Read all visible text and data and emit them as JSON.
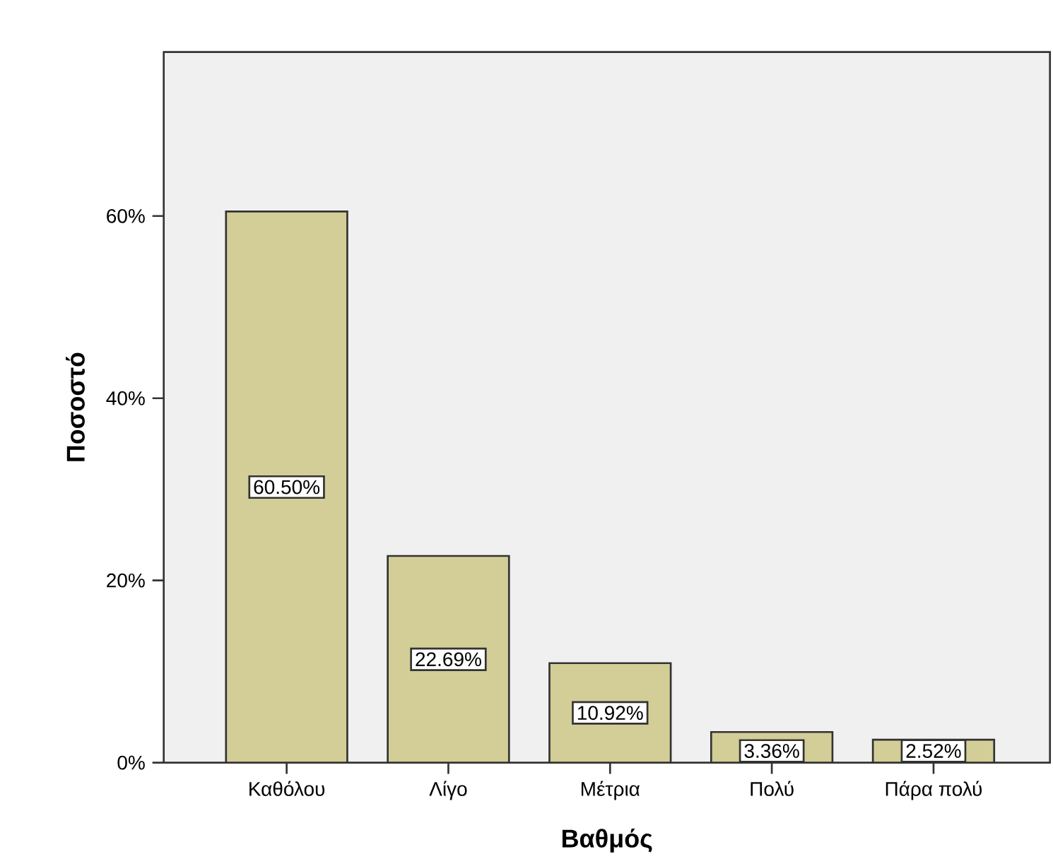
{
  "chart_data": {
    "type": "bar",
    "xlabel": "Βαθμός",
    "ylabel": "Ποσοστό",
    "categories": [
      "Καθόλου",
      "Λίγο",
      "Μέτρια",
      "Πολύ",
      "Πάρα πολύ"
    ],
    "values": [
      60.5,
      22.69,
      10.92,
      3.36,
      2.52
    ],
    "value_labels": [
      "60.50%",
      "22.69%",
      "10.92%",
      "3.36%",
      "2.52%"
    ],
    "color": "#d3ce97",
    "ylim": [
      0,
      78
    ],
    "yticks": [
      {
        "value": 0,
        "label": "0%"
      },
      {
        "value": 20,
        "label": "20%"
      },
      {
        "value": 40,
        "label": "40%"
      },
      {
        "value": 60,
        "label": "60%"
      }
    ]
  }
}
